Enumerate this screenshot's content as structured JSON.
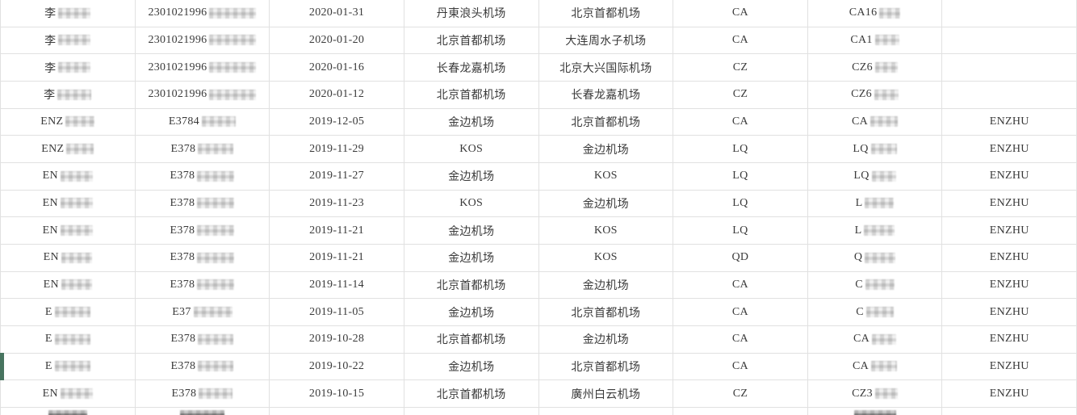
{
  "theme": {
    "accent_green": "#47745f",
    "border_color": "#e1e1e1",
    "text_color": "#3a3a3a",
    "censor_light": "#e0e0e0",
    "censor_dark": "#8d8d8d"
  },
  "table": {
    "description": "flight-history-records-grid",
    "columns": [
      "name",
      "id-number",
      "flight-date",
      "departure-airport",
      "arrival-airport",
      "airline-code",
      "flight-number",
      "passenger-tag"
    ],
    "green_marker_row_index": 13,
    "rows": [
      {
        "cells": [
          {
            "t": "李",
            "c": 40
          },
          {
            "t": "2301021996",
            "c": 58
          },
          {
            "t": "2020-01-31"
          },
          {
            "t": "丹東浪头机场"
          },
          {
            "t": "北京首都机场"
          },
          {
            "t": "CA"
          },
          {
            "t": "CA16",
            "c": 26
          },
          {
            "t": ""
          }
        ]
      },
      {
        "cells": [
          {
            "t": "李",
            "c": 40
          },
          {
            "t": "2301021996",
            "c": 58
          },
          {
            "t": "2020-01-20"
          },
          {
            "t": "北京首都机场"
          },
          {
            "t": "大连周水子机场"
          },
          {
            "t": "CA"
          },
          {
            "t": "CA1",
            "c": 30
          },
          {
            "t": ""
          }
        ]
      },
      {
        "cells": [
          {
            "t": "李",
            "c": 40
          },
          {
            "t": "2301021996",
            "c": 58
          },
          {
            "t": "2020-01-16"
          },
          {
            "t": "长春龙嘉机场"
          },
          {
            "t": "北京大兴国际机场"
          },
          {
            "t": "CZ"
          },
          {
            "t": "CZ6",
            "c": 28
          },
          {
            "t": ""
          }
        ]
      },
      {
        "cells": [
          {
            "t": "李",
            "c": 42
          },
          {
            "t": "2301021996",
            "c": 58
          },
          {
            "t": "2020-01-12"
          },
          {
            "t": "北京首都机场"
          },
          {
            "t": "长春龙嘉机场"
          },
          {
            "t": "CZ"
          },
          {
            "t": "CZ6",
            "c": 30
          },
          {
            "t": ""
          }
        ]
      },
      {
        "cells": [
          {
            "t": "ENZ",
            "c": 36
          },
          {
            "t": "E3784",
            "c": 42
          },
          {
            "t": "2019-12-05"
          },
          {
            "t": "金边机场"
          },
          {
            "t": "北京首都机场"
          },
          {
            "t": "CA"
          },
          {
            "t": "CA",
            "c": 34
          },
          {
            "t": "ENZHU"
          }
        ]
      },
      {
        "cells": [
          {
            "t": "ENZ",
            "c": 34
          },
          {
            "t": "E378",
            "c": 44
          },
          {
            "t": "2019-11-29"
          },
          {
            "t": "KOS"
          },
          {
            "t": "金边机场"
          },
          {
            "t": "LQ"
          },
          {
            "t": "LQ",
            "c": 32
          },
          {
            "t": "ENZHU"
          }
        ]
      },
      {
        "cells": [
          {
            "t": "EN",
            "c": 40
          },
          {
            "t": "E378",
            "c": 46
          },
          {
            "t": "2019-11-27"
          },
          {
            "t": "金边机场"
          },
          {
            "t": "KOS"
          },
          {
            "t": "LQ"
          },
          {
            "t": "LQ",
            "c": 30
          },
          {
            "t": "ENZHU"
          }
        ]
      },
      {
        "cells": [
          {
            "t": "EN",
            "c": 40
          },
          {
            "t": "E378",
            "c": 46
          },
          {
            "t": "2019-11-23"
          },
          {
            "t": "KOS"
          },
          {
            "t": "金边机场"
          },
          {
            "t": "LQ"
          },
          {
            "t": "L",
            "c": 36
          },
          {
            "t": "ENZHU"
          }
        ]
      },
      {
        "cells": [
          {
            "t": "EN",
            "c": 40
          },
          {
            "t": "E378",
            "c": 46
          },
          {
            "t": "2019-11-21"
          },
          {
            "t": "金边机场"
          },
          {
            "t": "KOS"
          },
          {
            "t": "LQ"
          },
          {
            "t": "L",
            "c": 38
          },
          {
            "t": "ENZHU"
          }
        ]
      },
      {
        "cells": [
          {
            "t": "EN",
            "c": 38
          },
          {
            "t": "E378",
            "c": 46
          },
          {
            "t": "2019-11-21"
          },
          {
            "t": "金边机场"
          },
          {
            "t": "KOS"
          },
          {
            "t": "QD"
          },
          {
            "t": "Q",
            "c": 38
          },
          {
            "t": "ENZHU"
          }
        ]
      },
      {
        "cells": [
          {
            "t": "EN",
            "c": 38
          },
          {
            "t": "E378",
            "c": 46
          },
          {
            "t": "2019-11-14"
          },
          {
            "t": "北京首都机场"
          },
          {
            "t": "金边机场"
          },
          {
            "t": "CA"
          },
          {
            "t": "C",
            "c": 36
          },
          {
            "t": "ENZHU"
          }
        ]
      },
      {
        "cells": [
          {
            "t": "E",
            "c": 44
          },
          {
            "t": "E37",
            "c": 48
          },
          {
            "t": "2019-11-05"
          },
          {
            "t": "金边机场"
          },
          {
            "t": "北京首都机场"
          },
          {
            "t": "CA"
          },
          {
            "t": "C",
            "c": 34
          },
          {
            "t": "ENZHU"
          }
        ]
      },
      {
        "cells": [
          {
            "t": "E",
            "c": 44
          },
          {
            "t": "E378",
            "c": 44
          },
          {
            "t": "2019-10-28"
          },
          {
            "t": "北京首都机场"
          },
          {
            "t": "金边机场"
          },
          {
            "t": "CA"
          },
          {
            "t": "CA",
            "c": 30
          },
          {
            "t": "ENZHU"
          }
        ]
      },
      {
        "cells": [
          {
            "t": "E",
            "c": 44
          },
          {
            "t": "E378",
            "c": 44
          },
          {
            "t": "2019-10-22"
          },
          {
            "t": "金边机场"
          },
          {
            "t": "北京首都机场"
          },
          {
            "t": "CA"
          },
          {
            "t": "CA",
            "c": 32
          },
          {
            "t": "ENZHU"
          }
        ]
      },
      {
        "cells": [
          {
            "t": "EN",
            "c": 40
          },
          {
            "t": "E378",
            "c": 42
          },
          {
            "t": "2019-10-15"
          },
          {
            "t": "北京首都机场"
          },
          {
            "t": "廣州白云机场"
          },
          {
            "t": "CZ"
          },
          {
            "t": "CZ3",
            "c": 28
          },
          {
            "t": "ENZHU"
          }
        ]
      }
    ],
    "partial_bottom_row": {
      "cells": [
        {
          "d": 48
        },
        {
          "d": 55
        },
        null,
        null,
        null,
        null,
        {
          "d": 52
        },
        null
      ]
    }
  }
}
